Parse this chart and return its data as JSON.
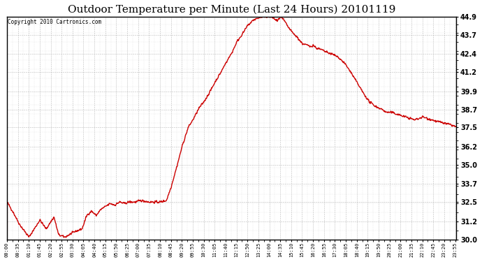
{
  "title": "Outdoor Temperature per Minute (Last 24 Hours) 20101119",
  "copyright": "Copyright 2010 Cartronics.com",
  "line_color": "#cc0000",
  "bg_color": "#ffffff",
  "grid_color": "#bbbbbb",
  "ylim": [
    30.0,
    44.9
  ],
  "yticks": [
    30.0,
    31.2,
    32.5,
    33.7,
    35.0,
    36.2,
    37.5,
    38.7,
    39.9,
    41.2,
    42.4,
    43.7,
    44.9
  ],
  "xlabel_fontsize": 5.0,
  "ylabel_fontsize": 7.0,
  "title_fontsize": 11,
  "keypoints": [
    [
      0,
      32.5
    ],
    [
      20,
      31.8
    ],
    [
      40,
      31.0
    ],
    [
      70,
      30.15
    ],
    [
      90,
      30.8
    ],
    [
      105,
      31.3
    ],
    [
      125,
      30.7
    ],
    [
      150,
      31.5
    ],
    [
      165,
      30.3
    ],
    [
      185,
      30.15
    ],
    [
      215,
      30.5
    ],
    [
      240,
      30.7
    ],
    [
      255,
      31.6
    ],
    [
      270,
      31.9
    ],
    [
      285,
      31.6
    ],
    [
      300,
      32.0
    ],
    [
      315,
      32.2
    ],
    [
      330,
      32.4
    ],
    [
      345,
      32.3
    ],
    [
      360,
      32.5
    ],
    [
      375,
      32.4
    ],
    [
      390,
      32.5
    ],
    [
      410,
      32.5
    ],
    [
      430,
      32.6
    ],
    [
      455,
      32.5
    ],
    [
      475,
      32.5
    ],
    [
      490,
      32.5
    ],
    [
      510,
      32.6
    ],
    [
      525,
      33.5
    ],
    [
      545,
      35.0
    ],
    [
      560,
      36.2
    ],
    [
      580,
      37.5
    ],
    [
      595,
      38.0
    ],
    [
      615,
      38.8
    ],
    [
      630,
      39.2
    ],
    [
      650,
      39.9
    ],
    [
      665,
      40.5
    ],
    [
      685,
      41.2
    ],
    [
      700,
      41.8
    ],
    [
      720,
      42.5
    ],
    [
      735,
      43.2
    ],
    [
      755,
      43.8
    ],
    [
      770,
      44.3
    ],
    [
      790,
      44.7
    ],
    [
      810,
      44.85
    ],
    [
      830,
      44.9
    ],
    [
      850,
      44.85
    ],
    [
      865,
      44.6
    ],
    [
      875,
      44.9
    ],
    [
      885,
      44.7
    ],
    [
      900,
      44.2
    ],
    [
      915,
      43.8
    ],
    [
      930,
      43.5
    ],
    [
      945,
      43.1
    ],
    [
      960,
      43.0
    ],
    [
      970,
      42.9
    ],
    [
      980,
      43.0
    ],
    [
      990,
      42.8
    ],
    [
      1005,
      42.7
    ],
    [
      1015,
      42.6
    ],
    [
      1025,
      42.5
    ],
    [
      1040,
      42.4
    ],
    [
      1060,
      42.2
    ],
    [
      1080,
      41.8
    ],
    [
      1100,
      41.2
    ],
    [
      1120,
      40.5
    ],
    [
      1140,
      39.8
    ],
    [
      1160,
      39.2
    ],
    [
      1180,
      38.9
    ],
    [
      1200,
      38.7
    ],
    [
      1215,
      38.5
    ],
    [
      1230,
      38.5
    ],
    [
      1245,
      38.4
    ],
    [
      1260,
      38.3
    ],
    [
      1275,
      38.2
    ],
    [
      1290,
      38.1
    ],
    [
      1305,
      38.0
    ],
    [
      1320,
      38.1
    ],
    [
      1330,
      38.2
    ],
    [
      1345,
      38.1
    ],
    [
      1360,
      38.0
    ],
    [
      1375,
      37.9
    ],
    [
      1395,
      37.8
    ],
    [
      1415,
      37.7
    ],
    [
      1430,
      37.6
    ],
    [
      1439,
      37.5
    ]
  ]
}
